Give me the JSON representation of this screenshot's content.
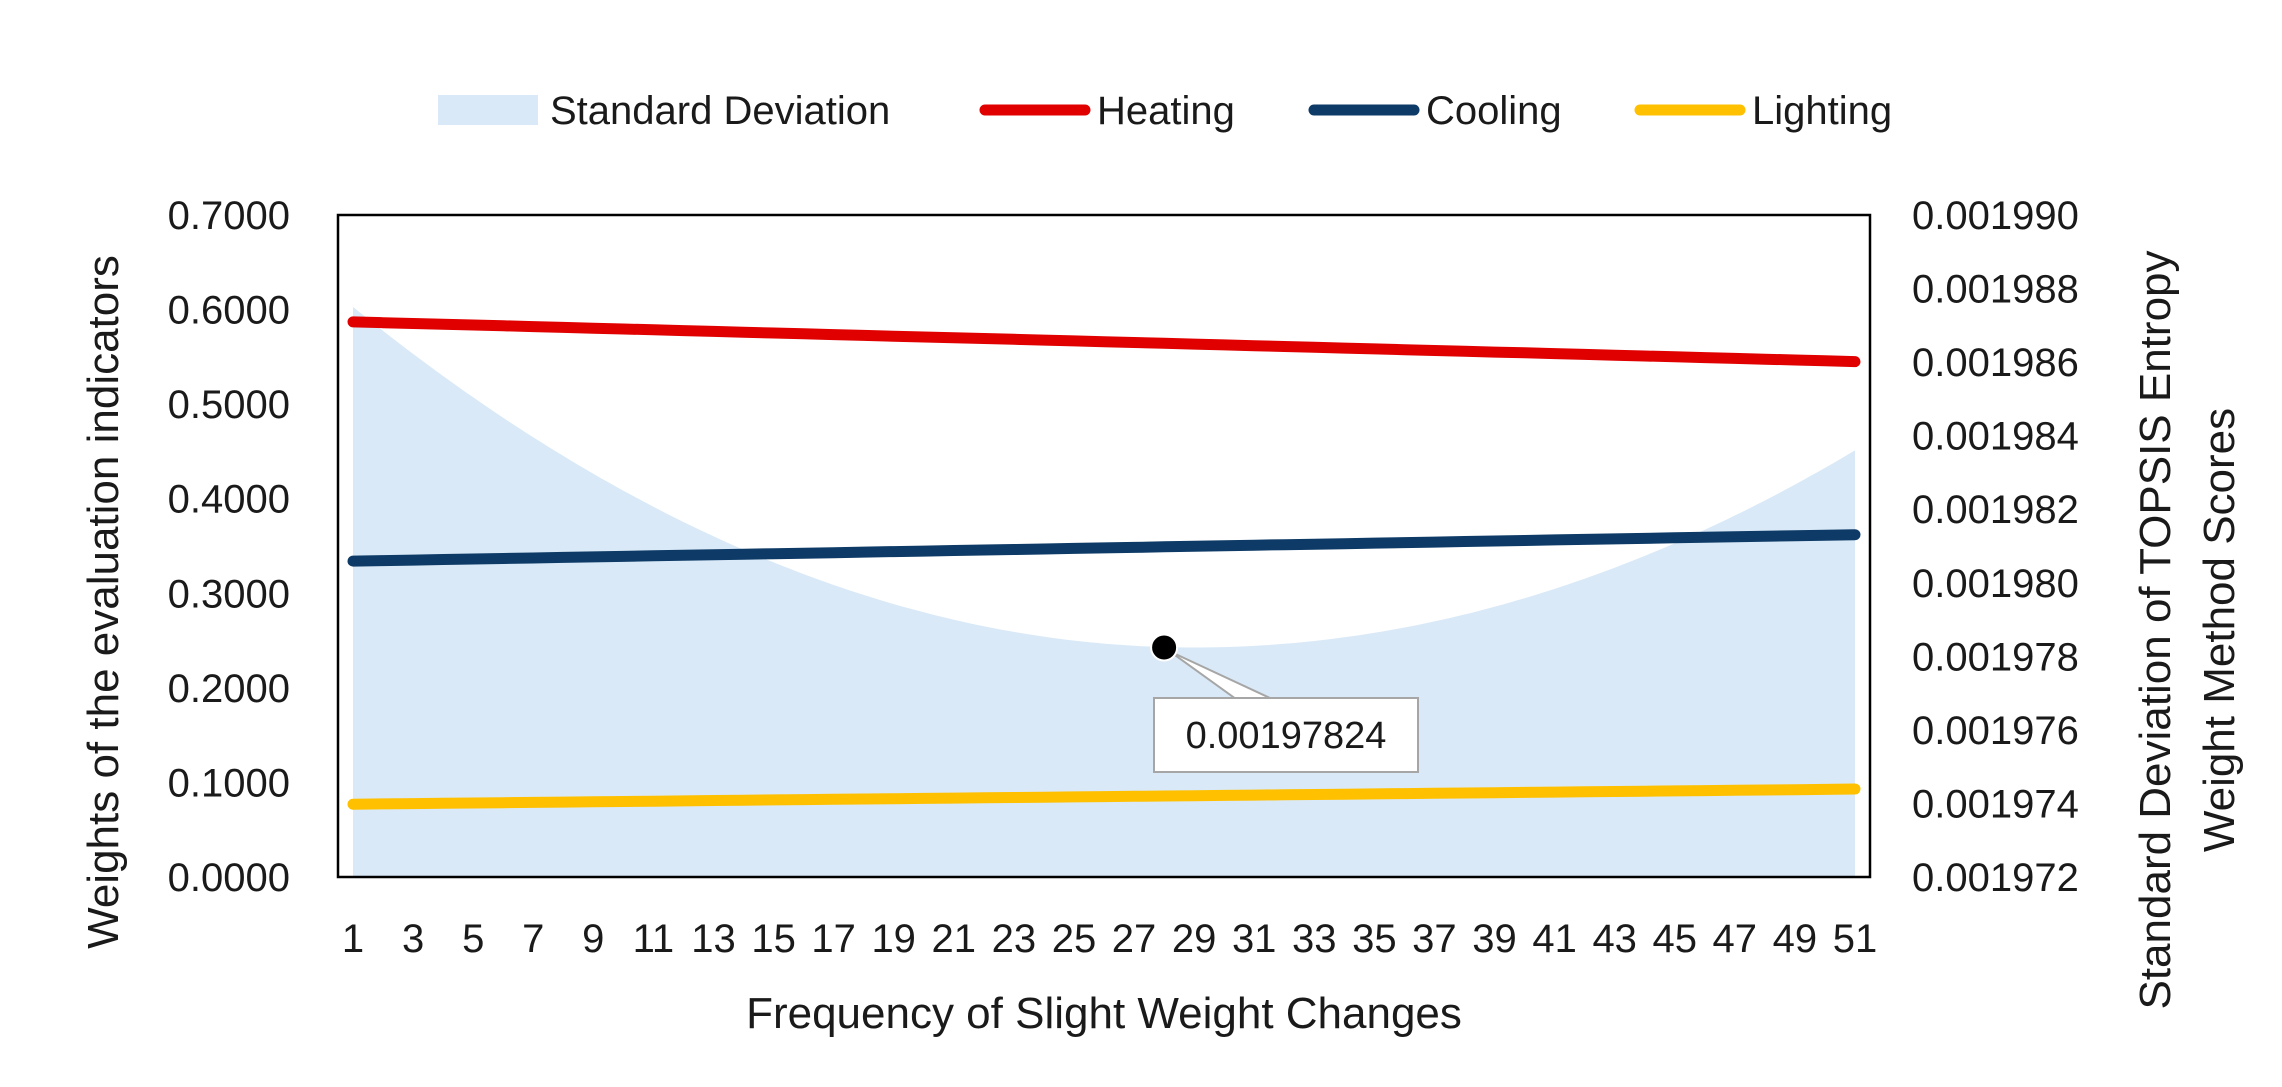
{
  "chart_data": {
    "type": "line",
    "title": "",
    "xlabel": "Frequency of Slight Weight Changes",
    "ylabel_left": "Weights of the evaluation indicators",
    "ylabel_right_lines": [
      "Standard Deviation of TOPSIS Entropy",
      "Weight Method Scores"
    ],
    "x": [
      1,
      2,
      3,
      4,
      5,
      6,
      7,
      8,
      9,
      10,
      11,
      12,
      13,
      14,
      15,
      16,
      17,
      18,
      19,
      20,
      21,
      22,
      23,
      24,
      25,
      26,
      27,
      28,
      29,
      30,
      31,
      32,
      33,
      34,
      35,
      36,
      37,
      38,
      39,
      40,
      41,
      42,
      43,
      44,
      45,
      46,
      47,
      48,
      49,
      50,
      51
    ],
    "x_tick_labels": [
      "1",
      "3",
      "5",
      "7",
      "9",
      "11",
      "13",
      "15",
      "17",
      "19",
      "21",
      "23",
      "25",
      "27",
      "29",
      "31",
      "33",
      "35",
      "37",
      "39",
      "41",
      "43",
      "45",
      "47",
      "49",
      "51"
    ],
    "ylim_left": [
      0,
      0.7
    ],
    "y_ticks_left": [
      "0.0000",
      "0.1000",
      "0.2000",
      "0.3000",
      "0.4000",
      "0.5000",
      "0.6000",
      "0.7000"
    ],
    "ylim_right": [
      0.001972,
      0.00199
    ],
    "y_ticks_right": [
      "0.001972",
      "0.001974",
      "0.001976",
      "0.001978",
      "0.001980",
      "0.001982",
      "0.001984",
      "0.001986",
      "0.001988",
      "0.001990"
    ],
    "legend_position": "top",
    "series": [
      {
        "name": "Standard Deviation",
        "kind": "area",
        "axis": "right",
        "color": "#d9e9f7",
        "vertex_x": 29,
        "start": 0.0019875,
        "end": 0.0019836,
        "min": 0.00197824
      },
      {
        "name": "Heating",
        "kind": "line",
        "axis": "left",
        "color": "#e00000",
        "start": 0.587,
        "end": 0.545
      },
      {
        "name": "Cooling",
        "kind": "line",
        "axis": "left",
        "color": "#0d3a66",
        "start": 0.334,
        "end": 0.362
      },
      {
        "name": "Lighting",
        "kind": "line",
        "axis": "left",
        "color": "#ffc000",
        "start": 0.077,
        "end": 0.093
      }
    ],
    "annotation": {
      "label": "0.00197824",
      "x": 28,
      "value": 0.00197824,
      "axis": "right"
    }
  }
}
